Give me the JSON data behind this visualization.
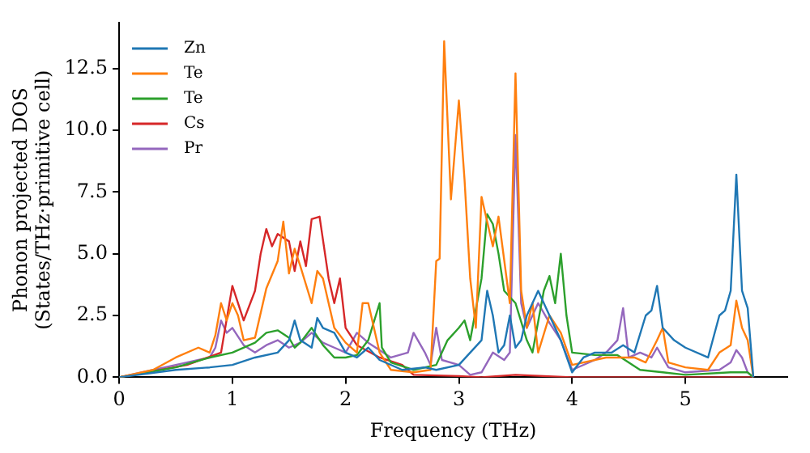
{
  "chart_data": {
    "type": "line",
    "xlabel": "Frequency (THz)",
    "ylabel": "Phonon projected DOS\n(States/THz·primitive cell)",
    "xlim": [
      0,
      5.9
    ],
    "xticks": [
      0,
      1,
      2,
      3,
      4,
      5
    ],
    "ylim": [
      0,
      14.35
    ],
    "yticks": [
      {
        "value": 0,
        "label": "0.0"
      },
      {
        "value": 2.5,
        "label": "2.5"
      },
      {
        "value": 5,
        "label": "5.0"
      },
      {
        "value": 7.5,
        "label": "7.5"
      },
      {
        "value": 10,
        "label": "10.0"
      },
      {
        "value": 12.5,
        "label": "12.5"
      }
    ],
    "grid": false,
    "legend": "top left",
    "marker": "none",
    "line_style": "solid",
    "series": [
      {
        "name": "Zn",
        "color": "#1f77b4",
        "x": [
          0,
          0.5,
          0.8,
          1.0,
          1.2,
          1.4,
          1.5,
          1.55,
          1.6,
          1.7,
          1.75,
          1.8,
          1.9,
          2.0,
          2.1,
          2.2,
          2.3,
          2.5,
          2.7,
          2.8,
          3.0,
          3.1,
          3.2,
          3.25,
          3.3,
          3.35,
          3.4,
          3.45,
          3.5,
          3.55,
          3.6,
          3.7,
          3.8,
          3.9,
          4.0,
          4.1,
          4.2,
          4.35,
          4.45,
          4.55,
          4.65,
          4.7,
          4.75,
          4.8,
          4.9,
          5.0,
          5.2,
          5.3,
          5.35,
          5.4,
          5.45,
          5.5,
          5.55,
          5.6
        ],
        "values": [
          0,
          0.3,
          0.4,
          0.5,
          0.8,
          1.0,
          1.5,
          2.3,
          1.5,
          1.2,
          2.4,
          2.0,
          1.8,
          1.0,
          0.8,
          1.2,
          0.7,
          0.3,
          0.4,
          0.3,
          0.5,
          1.0,
          1.5,
          3.5,
          2.5,
          1.0,
          1.3,
          2.5,
          1.2,
          1.5,
          2.5,
          3.5,
          2.5,
          1.5,
          0.2,
          0.8,
          1.0,
          1.0,
          1.3,
          1.0,
          2.5,
          2.7,
          3.7,
          2.0,
          1.5,
          1.2,
          0.8,
          2.5,
          2.7,
          3.5,
          8.2,
          3.5,
          2.8,
          0
        ]
      },
      {
        "name": "Te",
        "color": "#ff7f0e",
        "x": [
          0,
          0.3,
          0.5,
          0.7,
          0.8,
          0.85,
          0.9,
          0.95,
          1.0,
          1.05,
          1.1,
          1.2,
          1.3,
          1.4,
          1.45,
          1.5,
          1.55,
          1.6,
          1.7,
          1.75,
          1.8,
          1.9,
          2.0,
          2.1,
          2.15,
          2.2,
          2.3,
          2.4,
          2.6,
          2.75,
          2.8,
          2.83,
          2.87,
          2.93,
          3.0,
          3.05,
          3.1,
          3.15,
          3.2,
          3.3,
          3.35,
          3.45,
          3.5,
          3.55,
          3.6,
          3.65,
          3.7,
          3.8,
          3.9,
          4.0,
          4.3,
          4.55,
          4.65,
          4.75,
          4.8,
          4.85,
          5.0,
          5.2,
          5.3,
          5.4,
          5.45,
          5.5,
          5.55,
          5.6
        ],
        "values": [
          0,
          0.3,
          0.8,
          1.2,
          1.0,
          1.7,
          3.0,
          2.3,
          3.0,
          2.5,
          1.5,
          1.6,
          3.6,
          4.7,
          6.3,
          4.2,
          5.2,
          4.5,
          3.0,
          4.3,
          4.0,
          2.0,
          1.4,
          1.0,
          3.0,
          3.0,
          1.0,
          0.3,
          0.2,
          0.3,
          4.7,
          4.8,
          13.6,
          7.2,
          11.2,
          8.0,
          4.0,
          2.0,
          7.3,
          5.3,
          6.5,
          3.0,
          12.3,
          3.5,
          2.0,
          3.0,
          1.0,
          2.5,
          1.8,
          0.5,
          0.8,
          0.8,
          0.6,
          1.5,
          2.0,
          0.6,
          0.4,
          0.3,
          1.0,
          1.3,
          3.1,
          2.0,
          1.5,
          0
        ]
      },
      {
        "name": "Te",
        "color": "#2ca02c",
        "x": [
          0,
          0.5,
          0.8,
          1.0,
          1.2,
          1.3,
          1.4,
          1.5,
          1.55,
          1.6,
          1.7,
          1.8,
          1.9,
          2.0,
          2.1,
          2.2,
          2.3,
          2.32,
          2.4,
          2.6,
          2.8,
          2.9,
          3.0,
          3.05,
          3.1,
          3.2,
          3.25,
          3.3,
          3.35,
          3.4,
          3.5,
          3.6,
          3.65,
          3.75,
          3.8,
          3.85,
          3.9,
          3.95,
          4.0,
          4.2,
          4.4,
          4.6,
          4.8,
          5.0,
          5.4,
          5.55,
          5.6
        ],
        "values": [
          0,
          0.4,
          0.8,
          1.0,
          1.4,
          1.8,
          1.9,
          1.6,
          1.2,
          1.4,
          2.0,
          1.3,
          0.8,
          0.8,
          0.9,
          1.5,
          3.0,
          1.2,
          0.6,
          0.3,
          0.5,
          1.5,
          2.0,
          2.3,
          1.5,
          4.0,
          6.6,
          6.2,
          5.0,
          3.5,
          3.0,
          1.5,
          1.0,
          3.5,
          4.1,
          3.0,
          5.0,
          2.5,
          1.0,
          0.9,
          0.9,
          0.3,
          0.2,
          0.1,
          0.2,
          0.2,
          0
        ]
      },
      {
        "name": "Cs",
        "color": "#d62728",
        "x": [
          0,
          0.6,
          0.9,
          1.0,
          1.1,
          1.2,
          1.25,
          1.3,
          1.35,
          1.4,
          1.5,
          1.55,
          1.6,
          1.65,
          1.7,
          1.77,
          1.85,
          1.9,
          1.95,
          2.0,
          2.1,
          2.3,
          2.5,
          2.6,
          3.0,
          3.2,
          3.5,
          4.0,
          5.6
        ],
        "values": [
          0,
          0.5,
          1.0,
          3.7,
          2.3,
          3.5,
          5.0,
          6.0,
          5.3,
          5.8,
          5.5,
          4.3,
          5.5,
          4.5,
          6.4,
          6.5,
          4.0,
          3.0,
          4.0,
          2.0,
          1.3,
          0.8,
          0.5,
          0.1,
          0.05,
          0,
          0.1,
          0,
          0
        ]
      },
      {
        "name": "Pr",
        "color": "#9467bd",
        "x": [
          0,
          0.5,
          0.8,
          0.85,
          0.9,
          0.95,
          1.0,
          1.1,
          1.2,
          1.3,
          1.4,
          1.5,
          1.6,
          1.7,
          1.8,
          1.9,
          2.0,
          2.1,
          2.2,
          2.4,
          2.55,
          2.6,
          2.7,
          2.75,
          2.8,
          2.85,
          3.0,
          3.1,
          3.2,
          3.3,
          3.4,
          3.45,
          3.5,
          3.55,
          3.6,
          3.7,
          3.8,
          3.9,
          4.0,
          4.2,
          4.3,
          4.4,
          4.45,
          4.5,
          4.6,
          4.7,
          4.75,
          4.85,
          5.0,
          5.3,
          5.4,
          5.45,
          5.5,
          5.55,
          5.6
        ],
        "values": [
          0,
          0.5,
          0.8,
          1.2,
          2.3,
          1.8,
          2.0,
          1.3,
          1.0,
          1.3,
          1.5,
          1.2,
          1.4,
          1.8,
          1.4,
          1.2,
          1.0,
          1.8,
          1.4,
          0.8,
          1.0,
          1.8,
          1.0,
          0.5,
          2.0,
          0.7,
          0.5,
          0.1,
          0.2,
          1.0,
          0.7,
          1.0,
          9.8,
          3.0,
          2.0,
          3.0,
          2.2,
          1.5,
          0.3,
          0.7,
          1.0,
          1.5,
          2.8,
          0.8,
          1.0,
          0.8,
          1.2,
          0.4,
          0.2,
          0.3,
          0.6,
          1.1,
          0.8,
          0.2,
          0
        ]
      }
    ]
  }
}
